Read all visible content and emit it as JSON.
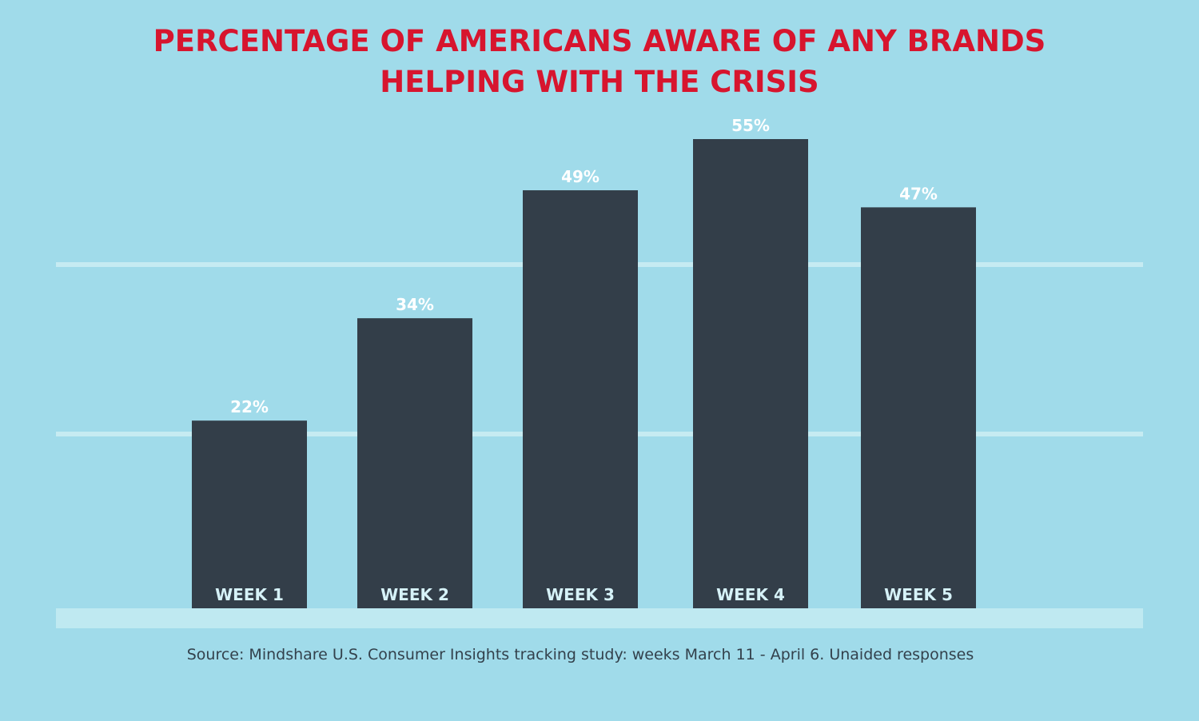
{
  "chart_data": {
    "type": "bar",
    "title_lines": [
      "PERCENTAGE OF AMERICANS AWARE OF ANY BRANDS",
      "HELPING WITH THE CRISIS"
    ],
    "categories": [
      "WEEK 1",
      "WEEK 2",
      "WEEK 3",
      "WEEK 4",
      "WEEK 5"
    ],
    "values": [
      22,
      34,
      49,
      55,
      47
    ],
    "value_labels": [
      "22%",
      "34%",
      "49%",
      "55%",
      "47%"
    ],
    "ylim": [
      0,
      55
    ],
    "grid": true,
    "source": "Source: Mindshare U.S. Consumer Insights tracking study: weeks March 11 - April 6. Unaided responses"
  },
  "colors": {
    "background": "#a0dbea",
    "bar": "#333e49",
    "title": "#d7152e",
    "gridline": "#c6ebf2",
    "baseline_band": "#bfe9f1",
    "value_label": "#ffffff",
    "category_label": "#d6f2f8",
    "source_text": "#33414c"
  }
}
